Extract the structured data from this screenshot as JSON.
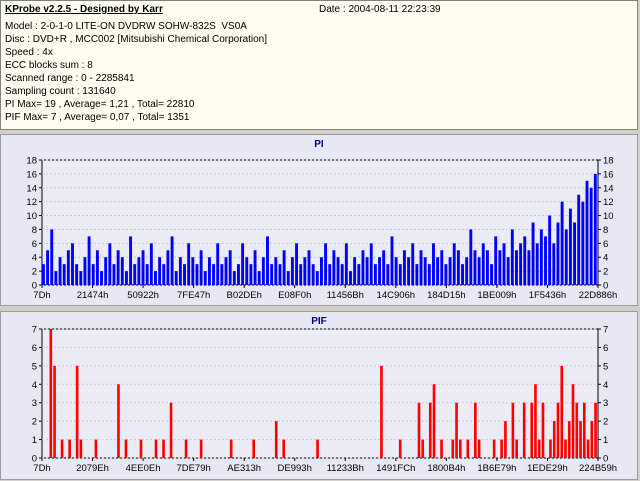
{
  "app": {
    "title": "KProbe v2.2.5 - Designed by Karr",
    "date": "Date : 2004-08-11 22:23:39"
  },
  "info_lines": [
    "Model : 2-0-1-0 LITE-ON DVDRW SOHW-832S  VS0A",
    "Disc : DVD+R , MCC002 [Mitsubishi Chemical Corporation]",
    "Speed : 4x",
    "ECC blocks sum : 8",
    "Scanned range : 0 - 2285841",
    "Sampling count : 131640",
    "PI Max= 19 , Average= 1,21 , Total= 22810",
    "PIF Max= 7 , Average= 0,07 , Total= 1351"
  ],
  "colors": {
    "pi_bar": "#0000ff",
    "pif_bar": "#ff0000",
    "background": "#e8e8f4"
  },
  "chart_data": [
    {
      "type": "bar",
      "title": "PI",
      "ylim": [
        0,
        18
      ],
      "y_ticks": [
        0,
        2,
        4,
        6,
        8,
        10,
        12,
        14,
        16,
        18
      ],
      "x_tick_labels": [
        "7Dh",
        "21474h",
        "50922h",
        "7FE47h",
        "B02DEh",
        "E08F0h",
        "11456Bh",
        "14C906h",
        "184D15h",
        "1BE009h",
        "1F5436h",
        "22D886h"
      ],
      "series": [
        {
          "values": [
            3,
            5,
            8,
            2,
            4,
            3,
            5,
            6,
            3,
            2,
            4,
            7,
            3,
            5,
            2,
            4,
            6,
            3,
            5,
            4,
            2,
            7,
            3,
            4,
            5,
            3,
            6,
            2,
            4,
            3,
            5,
            7,
            2,
            4,
            3,
            6,
            4,
            3,
            5,
            2,
            4,
            3,
            6,
            3,
            4,
            5,
            2,
            3,
            6,
            4,
            3,
            5,
            2,
            4,
            7,
            3,
            4,
            3,
            5,
            2,
            4,
            6,
            3,
            4,
            5,
            3,
            2,
            4,
            6,
            3,
            5,
            4,
            3,
            6,
            2,
            4,
            3,
            5,
            4,
            6,
            3,
            4,
            5,
            3,
            7,
            4,
            3,
            5,
            4,
            6,
            3,
            5,
            4,
            3,
            6,
            4,
            5,
            3,
            4,
            6,
            5,
            3,
            4,
            8,
            5,
            4,
            6,
            5,
            3,
            7,
            5,
            6,
            4,
            8,
            5,
            6,
            7,
            5,
            9,
            6,
            8,
            7,
            10,
            6,
            9,
            12,
            8,
            11,
            9,
            13,
            12,
            15,
            14,
            16
          ]
        }
      ]
    },
    {
      "type": "bar",
      "title": "PIF",
      "ylim": [
        0,
        7
      ],
      "y_ticks": [
        0,
        1,
        2,
        3,
        4,
        5,
        6,
        7
      ],
      "x_tick_labels": [
        "7Dh",
        "2079Eh",
        "4EE0Eh",
        "7DE79h",
        "AE313h",
        "DE993h",
        "11233Bh",
        "1491FCh",
        "1800B4h",
        "1B6E79h",
        "1EDE29h",
        "224B59h"
      ],
      "series": [
        {
          "values": [
            0,
            0,
            7,
            5,
            0,
            1,
            0,
            1,
            0,
            5,
            1,
            0,
            0,
            0,
            1,
            0,
            0,
            0,
            0,
            0,
            4,
            0,
            1,
            0,
            0,
            0,
            1,
            0,
            0,
            0,
            1,
            0,
            1,
            0,
            3,
            0,
            0,
            0,
            1,
            0,
            0,
            0,
            1,
            0,
            0,
            0,
            0,
            0,
            0,
            0,
            1,
            0,
            0,
            0,
            0,
            0,
            1,
            0,
            0,
            0,
            0,
            0,
            2,
            0,
            1,
            0,
            0,
            0,
            0,
            0,
            0,
            0,
            0,
            1,
            0,
            0,
            0,
            0,
            0,
            0,
            0,
            0,
            0,
            0,
            0,
            0,
            0,
            0,
            0,
            0,
            5,
            0,
            0,
            0,
            0,
            1,
            0,
            0,
            0,
            0,
            3,
            1,
            0,
            3,
            4,
            0,
            1,
            0,
            0,
            1,
            3,
            1,
            0,
            1,
            0,
            3,
            1,
            0,
            0,
            0,
            1,
            0,
            1,
            2,
            0,
            3,
            1,
            0,
            3,
            0,
            3,
            4,
            1,
            3,
            0,
            1,
            2,
            3,
            5,
            1,
            2,
            4,
            3,
            2,
            3,
            1,
            2,
            3
          ]
        }
      ]
    }
  ]
}
